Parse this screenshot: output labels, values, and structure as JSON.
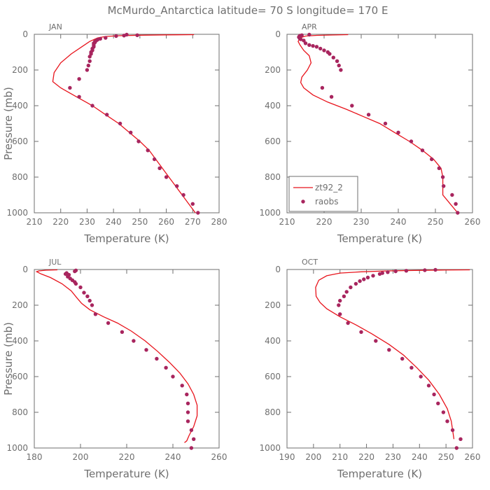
{
  "title": "McMurdo_Antarctica  latitude= 70 S longitude= 170 E",
  "colors": {
    "model": "#e8141c",
    "obs": "#a8255e",
    "axis": "#6f6f6f",
    "text": "#6f6f6f"
  },
  "chart_data": [
    {
      "type": "line",
      "panel": "JAN",
      "xlabel": "Temperature (K)",
      "ylabel": "Pressure (mb)",
      "xlim": [
        210,
        280
      ],
      "ylim": [
        1000,
        0
      ],
      "xticks": [
        "210",
        "220",
        "230",
        "240",
        "250",
        "260",
        "270",
        "280"
      ],
      "yticks": [
        "0",
        "200",
        "400",
        "600",
        "800",
        "1000"
      ],
      "model": {
        "name": "zt92_2",
        "points": [
          [
            270.5,
            2
          ],
          [
            260,
            3
          ],
          [
            250,
            5
          ],
          [
            242,
            8
          ],
          [
            237,
            12
          ],
          [
            234,
            20
          ],
          [
            231,
            40
          ],
          [
            228,
            70
          ],
          [
            224,
            110
          ],
          [
            220,
            160
          ],
          [
            217.5,
            215
          ],
          [
            217,
            265
          ],
          [
            220,
            300
          ],
          [
            226,
            350
          ],
          [
            232,
            400
          ],
          [
            237,
            450
          ],
          [
            242,
            500
          ],
          [
            246,
            550
          ],
          [
            250,
            600
          ],
          [
            253.5,
            650
          ],
          [
            256,
            700
          ],
          [
            258.5,
            750
          ],
          [
            261,
            800
          ],
          [
            263.5,
            850
          ],
          [
            266,
            900
          ],
          [
            268.5,
            950
          ],
          [
            271,
            1000
          ]
        ]
      },
      "obs": {
        "name": "raobs",
        "points": [
          [
            245,
            2
          ],
          [
            249,
            5
          ],
          [
            244,
            7
          ],
          [
            241,
            10
          ],
          [
            237,
            20
          ],
          [
            235,
            25
          ],
          [
            234,
            30
          ],
          [
            233.5,
            35
          ],
          [
            233,
            40
          ],
          [
            233,
            45
          ],
          [
            232.5,
            50
          ],
          [
            232.5,
            60
          ],
          [
            232.5,
            70
          ],
          [
            232,
            80
          ],
          [
            232,
            90
          ],
          [
            231.5,
            100
          ],
          [
            231.5,
            110
          ],
          [
            231,
            125
          ],
          [
            231,
            150
          ],
          [
            230.5,
            175
          ],
          [
            230,
            200
          ],
          [
            227,
            250
          ],
          [
            223.5,
            300
          ],
          [
            227,
            350
          ],
          [
            232,
            400
          ],
          [
            237.5,
            450
          ],
          [
            242.5,
            500
          ],
          [
            246.5,
            550
          ],
          [
            249.5,
            600
          ],
          [
            253,
            650
          ],
          [
            255.5,
            700
          ],
          [
            257.5,
            750
          ],
          [
            260,
            800
          ],
          [
            264,
            850
          ],
          [
            266.5,
            900
          ],
          [
            270,
            950
          ],
          [
            272,
            1000
          ]
        ]
      }
    },
    {
      "type": "line",
      "panel": "APR",
      "xlabel": "Temperature (K)",
      "ylabel": "",
      "xlim": [
        210,
        260
      ],
      "ylim": [
        1000,
        0
      ],
      "xticks": [
        "210",
        "220",
        "230",
        "240",
        "250",
        "260"
      ],
      "yticks": [
        "0",
        "200",
        "400",
        "600",
        "800",
        "1000"
      ],
      "legend": {
        "position": "bottom-left",
        "entries": [
          "zt92_2",
          "raobs"
        ]
      },
      "model": {
        "name": "zt92_2",
        "points": [
          [
            226.5,
            2
          ],
          [
            222,
            4
          ],
          [
            218,
            6
          ],
          [
            215,
            10
          ],
          [
            213.5,
            20
          ],
          [
            213,
            40
          ],
          [
            213.5,
            60
          ],
          [
            214.5,
            90
          ],
          [
            216,
            120
          ],
          [
            216.5,
            160
          ],
          [
            215.5,
            200
          ],
          [
            214,
            240
          ],
          [
            213.7,
            270
          ],
          [
            214.5,
            300
          ],
          [
            217,
            340
          ],
          [
            221,
            380
          ],
          [
            226,
            420
          ],
          [
            230.5,
            460
          ],
          [
            235,
            500
          ],
          [
            239,
            550
          ],
          [
            243,
            600
          ],
          [
            246.5,
            650
          ],
          [
            249.5,
            700
          ],
          [
            251.5,
            750
          ],
          [
            252,
            800
          ],
          [
            252,
            850
          ],
          [
            252,
            900
          ],
          [
            254,
            950
          ],
          [
            256,
            1000
          ]
        ]
      },
      "obs": {
        "name": "raobs",
        "points": [
          [
            216,
            2
          ],
          [
            214,
            5
          ],
          [
            213.5,
            8
          ],
          [
            213.3,
            12
          ],
          [
            213.2,
            16
          ],
          [
            213.4,
            22
          ],
          [
            213.7,
            28
          ],
          [
            214.5,
            35
          ],
          [
            215,
            50
          ],
          [
            216,
            60
          ],
          [
            217,
            65
          ],
          [
            218,
            70
          ],
          [
            219,
            80
          ],
          [
            220,
            90
          ],
          [
            221,
            100
          ],
          [
            221.5,
            110
          ],
          [
            222.5,
            130
          ],
          [
            223.5,
            150
          ],
          [
            224,
            175
          ],
          [
            224.5,
            200
          ],
          [
            219.5,
            300
          ],
          [
            222,
            350
          ],
          [
            227.5,
            400
          ],
          [
            232,
            450
          ],
          [
            236.5,
            500
          ],
          [
            240,
            550
          ],
          [
            243.5,
            600
          ],
          [
            246.5,
            650
          ],
          [
            249,
            700
          ],
          [
            251,
            750
          ],
          [
            252,
            800
          ],
          [
            252.2,
            850
          ],
          [
            254.5,
            900
          ],
          [
            255.5,
            950
          ],
          [
            256,
            1000
          ]
        ]
      }
    },
    {
      "type": "line",
      "panel": "JUL",
      "xlabel": "Temperature (K)",
      "ylabel": "Pressure (mb)",
      "xlim": [
        180,
        260
      ],
      "ylim": [
        1000,
        0
      ],
      "xticks": [
        "180",
        "200",
        "220",
        "240",
        "260"
      ],
      "yticks": [
        "0",
        "200",
        "400",
        "600",
        "800",
        "1000"
      ],
      "model": {
        "name": "zt92_2",
        "points": [
          [
            190,
            2
          ],
          [
            185,
            4
          ],
          [
            182,
            8
          ],
          [
            181,
            12
          ],
          [
            183,
            25
          ],
          [
            187,
            45
          ],
          [
            192,
            80
          ],
          [
            196,
            120
          ],
          [
            198.5,
            160
          ],
          [
            200.5,
            190
          ],
          [
            204,
            225
          ],
          [
            210,
            265
          ],
          [
            216,
            300
          ],
          [
            222,
            345
          ],
          [
            228,
            400
          ],
          [
            233.5,
            460
          ],
          [
            238.5,
            520
          ],
          [
            243,
            580
          ],
          [
            246.5,
            640
          ],
          [
            249,
            700
          ],
          [
            250.5,
            760
          ],
          [
            250.5,
            820
          ],
          [
            249,
            880
          ],
          [
            247,
            930
          ],
          [
            246,
            960
          ],
          [
            245,
            970
          ]
        ]
      },
      "obs": {
        "name": "raobs",
        "points": [
          [
            198,
            5
          ],
          [
            197.5,
            10
          ],
          [
            194,
            20
          ],
          [
            193.5,
            25
          ],
          [
            195,
            30
          ],
          [
            194.5,
            40
          ],
          [
            195.5,
            50
          ],
          [
            196.5,
            60
          ],
          [
            197.5,
            70
          ],
          [
            198,
            80
          ],
          [
            200,
            100
          ],
          [
            201.5,
            130
          ],
          [
            203,
            150
          ],
          [
            204,
            175
          ],
          [
            205,
            200
          ],
          [
            206.5,
            250
          ],
          [
            212,
            300
          ],
          [
            218,
            350
          ],
          [
            223,
            400
          ],
          [
            228.5,
            450
          ],
          [
            233,
            500
          ],
          [
            237,
            550
          ],
          [
            240,
            600
          ],
          [
            244,
            650
          ],
          [
            246,
            700
          ],
          [
            246.5,
            750
          ],
          [
            246.5,
            800
          ],
          [
            246.5,
            850
          ],
          [
            248,
            900
          ],
          [
            249,
            950
          ],
          [
            248,
            1000
          ]
        ]
      }
    },
    {
      "type": "line",
      "panel": "OCT",
      "xlabel": "Temperature (K)",
      "ylabel": "",
      "xlim": [
        190,
        260
      ],
      "ylim": [
        1000,
        0
      ],
      "xticks": [
        "190",
        "200",
        "210",
        "220",
        "230",
        "240",
        "250",
        "260"
      ],
      "yticks": [
        "0",
        "200",
        "400",
        "600",
        "800",
        "1000"
      ],
      "model": {
        "name": "zt92_2",
        "points": [
          [
            259,
            2
          ],
          [
            248,
            3
          ],
          [
            238,
            5
          ],
          [
            228,
            8
          ],
          [
            218,
            13
          ],
          [
            210,
            20
          ],
          [
            205,
            35
          ],
          [
            202,
            60
          ],
          [
            200.8,
            100
          ],
          [
            201,
            150
          ],
          [
            202.5,
            185
          ],
          [
            205,
            220
          ],
          [
            210,
            265
          ],
          [
            216,
            310
          ],
          [
            222,
            360
          ],
          [
            228.5,
            420
          ],
          [
            234,
            480
          ],
          [
            239,
            550
          ],
          [
            243.5,
            620
          ],
          [
            247.5,
            700
          ],
          [
            250.5,
            780
          ],
          [
            252,
            850
          ],
          [
            252.5,
            900
          ],
          [
            253,
            950
          ]
        ]
      },
      "obs": {
        "name": "raobs",
        "points": [
          [
            246,
            2
          ],
          [
            242,
            4
          ],
          [
            235,
            7
          ],
          [
            231,
            10
          ],
          [
            228,
            15
          ],
          [
            226,
            20
          ],
          [
            225,
            25
          ],
          [
            222.5,
            35
          ],
          [
            220.5,
            45
          ],
          [
            219,
            55
          ],
          [
            217.5,
            65
          ],
          [
            216,
            80
          ],
          [
            214,
            100
          ],
          [
            212.5,
            125
          ],
          [
            211.5,
            150
          ],
          [
            210,
            175
          ],
          [
            209.5,
            200
          ],
          [
            210,
            250
          ],
          [
            213,
            300
          ],
          [
            218,
            350
          ],
          [
            223.5,
            400
          ],
          [
            228.5,
            450
          ],
          [
            233.5,
            500
          ],
          [
            237,
            550
          ],
          [
            240.5,
            600
          ],
          [
            243.5,
            650
          ],
          [
            245.5,
            700
          ],
          [
            247,
            750
          ],
          [
            249,
            800
          ],
          [
            250.5,
            850
          ],
          [
            252.5,
            900
          ],
          [
            255.5,
            950
          ],
          [
            254,
            1000
          ]
        ]
      }
    }
  ]
}
